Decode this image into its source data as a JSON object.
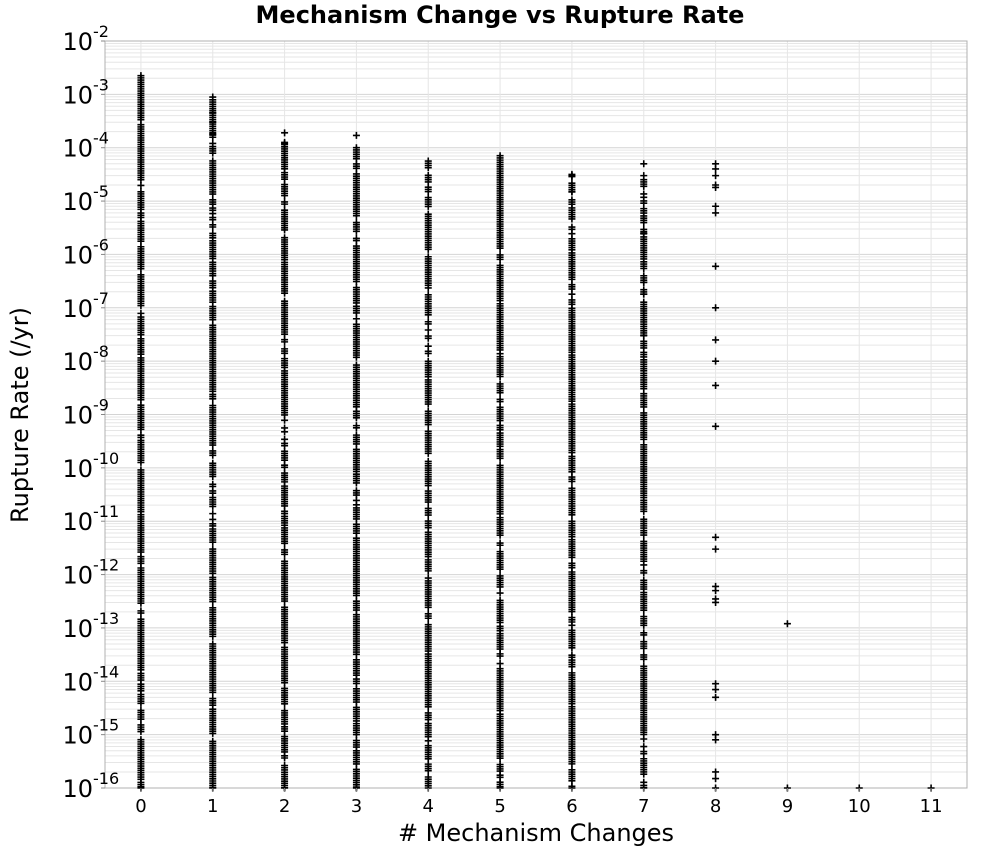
{
  "chart_data": {
    "type": "scatter",
    "title": "Mechanism Change vs Rupture Rate",
    "xlabel": "# Mechanism Changes",
    "ylabel": "Rupture Rate (/yr)",
    "x_scale": "linear",
    "y_scale": "log",
    "xlim": [
      -0.5,
      11.5
    ],
    "ylim": [
      1e-16,
      0.01
    ],
    "x_ticks": [
      "0",
      "1",
      "2",
      "3",
      "4",
      "5",
      "6",
      "7",
      "8",
      "9",
      "10",
      "11"
    ],
    "y_ticks": [
      {
        "base": "10",
        "exp": "-16"
      },
      {
        "base": "10",
        "exp": "-15"
      },
      {
        "base": "10",
        "exp": "-14"
      },
      {
        "base": "10",
        "exp": "-13"
      },
      {
        "base": "10",
        "exp": "-12"
      },
      {
        "base": "10",
        "exp": "-11"
      },
      {
        "base": "10",
        "exp": "-10"
      },
      {
        "base": "10",
        "exp": "-9"
      },
      {
        "base": "10",
        "exp": "-8"
      },
      {
        "base": "10",
        "exp": "-7"
      },
      {
        "base": "10",
        "exp": "-6"
      },
      {
        "base": "10",
        "exp": "-5"
      },
      {
        "base": "10",
        "exp": "-4"
      },
      {
        "base": "10",
        "exp": "-3"
      },
      {
        "base": "10",
        "exp": "-2"
      }
    ],
    "grid": true,
    "marker": "+",
    "colors": {
      "marker": "#000000",
      "grid": "#e6e6e6",
      "frame": "#b0b0b0"
    },
    "series": [
      {
        "x": 0,
        "dense_log10_range": [
          -16,
          -2.65
        ],
        "sparse_points": []
      },
      {
        "x": 1,
        "dense_log10_range": [
          -16,
          -3.05
        ],
        "sparse_points": [
          0.0003,
          0.00045,
          0.00018
        ]
      },
      {
        "x": 2,
        "dense_log10_range": [
          -16,
          -3.9
        ],
        "sparse_points": [
          0.00019,
          0.00012
        ]
      },
      {
        "x": 3,
        "dense_log10_range": [
          -16,
          -4.0
        ],
        "sparse_points": [
          0.00017
        ]
      },
      {
        "x": 4,
        "dense_log10_range": [
          -16,
          -4.25
        ],
        "sparse_points": []
      },
      {
        "x": 5,
        "dense_log10_range": [
          -16,
          -4.15
        ],
        "sparse_points": []
      },
      {
        "x": 6,
        "dense_log10_range": [
          -16,
          -4.5
        ],
        "sparse_points": [
          3e-05,
          1.5e-05
        ]
      },
      {
        "x": 7,
        "dense_log10_range": [
          -16,
          -4.6
        ],
        "sparse_points": [
          5e-05,
          3e-05,
          2.5e-06,
          3e-07,
          1.8e-07,
          3e-08,
          1.2e-08
        ]
      },
      {
        "x": 8,
        "dense_log10_range": null,
        "sparse_points": [
          5e-05,
          4e-05,
          3e-05,
          2e-05,
          1.8e-05,
          8e-06,
          6e-06,
          6e-07,
          1e-07,
          2.5e-08,
          1e-08,
          3.5e-09,
          6e-10,
          5e-12,
          3e-12,
          6e-13,
          5e-13,
          3.5e-13,
          3e-13,
          9e-15,
          7e-15,
          5e-15,
          1e-15,
          8e-16,
          2e-16,
          1.5e-16,
          1e-16
        ]
      },
      {
        "x": 9,
        "dense_log10_range": null,
        "sparse_points": [
          1.2e-13,
          1e-16
        ]
      },
      {
        "x": 10,
        "dense_log10_range": null,
        "sparse_points": [
          1e-16
        ]
      },
      {
        "x": 11,
        "dense_log10_range": null,
        "sparse_points": [
          1e-16
        ]
      }
    ]
  }
}
